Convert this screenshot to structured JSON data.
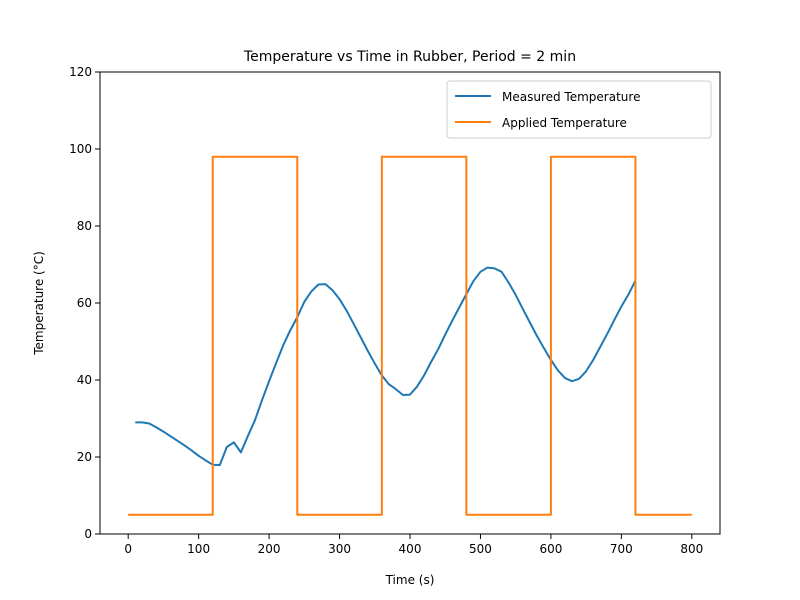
{
  "chart_data": {
    "type": "line",
    "title": "Temperature vs Time in Rubber, Period = 2 min",
    "xlabel": "Time (s)",
    "ylabel": "Temperature (°C)",
    "xlim": [
      -40,
      840
    ],
    "ylim": [
      0,
      120
    ],
    "xticks": [
      0,
      100,
      200,
      300,
      400,
      500,
      600,
      700,
      800
    ],
    "yticks": [
      0,
      20,
      40,
      60,
      80,
      100,
      120
    ],
    "grid": false,
    "legend_position": "top-right",
    "series": [
      {
        "name": "Measured Temperature",
        "color": "#1f77b4",
        "x": [
          10,
          20,
          30,
          40,
          50,
          60,
          70,
          80,
          90,
          100,
          110,
          120,
          130,
          140,
          150,
          160,
          170,
          180,
          190,
          200,
          210,
          220,
          230,
          240,
          250,
          260,
          270,
          280,
          290,
          300,
          310,
          320,
          330,
          340,
          350,
          360,
          370,
          380,
          390,
          400,
          410,
          420,
          430,
          440,
          450,
          460,
          470,
          480,
          490,
          500,
          510,
          520,
          530,
          540,
          550,
          560,
          570,
          580,
          590,
          600,
          610,
          620,
          630,
          640,
          650,
          660,
          670,
          680,
          690,
          700,
          710,
          720
        ],
        "y": [
          29,
          29,
          28.7,
          27.7,
          26.6,
          25.4,
          24.2,
          23,
          21.7,
          20.3,
          19.1,
          18,
          17.9,
          22.6,
          23.8,
          21.2,
          25.5,
          29.6,
          34.8,
          39.7,
          44.4,
          49,
          52.9,
          56.3,
          60.3,
          63,
          64.8,
          64.9,
          63.3,
          61,
          58,
          54.6,
          51.1,
          47.6,
          44.3,
          41.2,
          38.9,
          37.6,
          36.1,
          36.2,
          38.3,
          41.2,
          44.7,
          48,
          51.8,
          55.4,
          58.9,
          62.3,
          65.7,
          68.1,
          69.2,
          69,
          68.1,
          65.3,
          62.1,
          58.5,
          55,
          51.5,
          48.3,
          45.2,
          42.5,
          40.5,
          39.7,
          40.3,
          42.3,
          45.2,
          48.6,
          52,
          55.6,
          59.1,
          62.2,
          65.8
        ]
      },
      {
        "name": "Applied Temperature",
        "color": "#ff7f0e",
        "x": [
          0,
          120,
          120,
          240,
          240,
          360,
          360,
          480,
          480,
          600,
          600,
          720,
          720,
          800
        ],
        "y": [
          5,
          5,
          98,
          98,
          5,
          5,
          98,
          98,
          5,
          5,
          98,
          98,
          5,
          5
        ]
      }
    ]
  }
}
